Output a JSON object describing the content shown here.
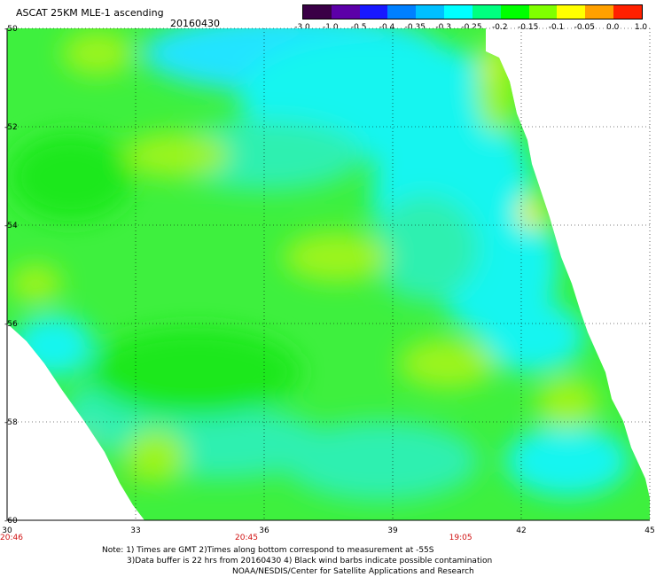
{
  "header": {
    "title": "ASCAT 25KM MLE-1 ascending",
    "date": "20160430"
  },
  "colorbar": {
    "labels": [
      "-3.0",
      "-1.0",
      "-0.5",
      "-0.4",
      "-0.35",
      "-0.3",
      "-0.25",
      "-0.2",
      "-0.15",
      "-0.1",
      "-0.05",
      "0.0",
      "1.0"
    ],
    "colors": [
      "#3a0046",
      "#5c00a8",
      "#1818ff",
      "#0080ff",
      "#00c0ff",
      "#00ffff",
      "#00ff80",
      "#00ff00",
      "#80ff00",
      "#ffff00",
      "#ffa000",
      "#ff2000"
    ]
  },
  "map": {
    "lat_labels": [
      "-50",
      "-52",
      "-54",
      "-56",
      "-58",
      "-60"
    ],
    "lon_labels": [
      "30",
      "33",
      "36",
      "39",
      "42",
      "45"
    ],
    "time_labels": [
      "20:46",
      "20:45",
      "19:05"
    ],
    "lat_range": [
      -60,
      -50
    ],
    "lon_range": [
      30,
      45
    ],
    "colors": {
      "green": "#3ef03e",
      "bright_green": "#1de81d",
      "yellow_green": "#9cf41a",
      "cyan_green": "#2ff0b0",
      "cyan": "#12f5f0",
      "light_blue": "#20e4ff",
      "yellow": "#f5f01a",
      "orange": "#ff8800"
    }
  },
  "notes": {
    "line1": "Note: 1) Times are GMT 2)Times along bottom correspond to measurement at -55S",
    "line2": "3)Data buffer is 22 hrs from 20160430 4) Black wind barbs indicate possible contamination",
    "line3": "NOAA/NESDIS/Center for Satellite Applications and Research"
  }
}
